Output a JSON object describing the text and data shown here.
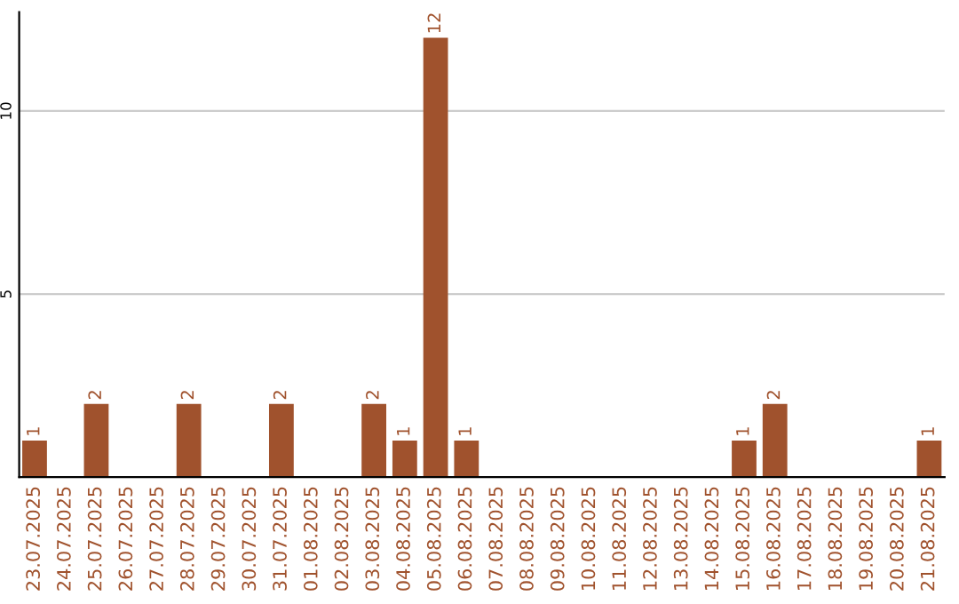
{
  "chart_data": {
    "type": "bar",
    "categories": [
      "23.07.2025",
      "24.07.2025",
      "25.07.2025",
      "26.07.2025",
      "27.07.2025",
      "28.07.2025",
      "29.07.2025",
      "30.07.2025",
      "31.07.2025",
      "01.08.2025",
      "02.08.2025",
      "03.08.2025",
      "04.08.2025",
      "05.08.2025",
      "06.08.2025",
      "07.08.2025",
      "08.08.2025",
      "09.08.2025",
      "10.08.2025",
      "11.08.2025",
      "12.08.2025",
      "13.08.2025",
      "14.08.2025",
      "15.08.2025",
      "16.08.2025",
      "17.08.2025",
      "18.08.2025",
      "19.08.2025",
      "20.08.2025",
      "21.08.2025"
    ],
    "values": [
      1,
      0,
      2,
      0,
      0,
      2,
      0,
      0,
      2,
      0,
      0,
      2,
      1,
      12,
      1,
      0,
      0,
      0,
      0,
      0,
      0,
      0,
      0,
      1,
      2,
      0,
      0,
      0,
      0,
      1
    ],
    "value_labels": [
      "1",
      null,
      "2",
      null,
      null,
      "2",
      null,
      null,
      "2",
      null,
      null,
      "2",
      "1",
      "12",
      "1",
      null,
      null,
      null,
      null,
      null,
      null,
      null,
      null,
      "1",
      "2",
      null,
      null,
      null,
      null,
      "1"
    ],
    "color": "#a0522d",
    "ylim": [
      0,
      12.7
    ],
    "yticks": [
      5,
      10
    ],
    "grid": "y"
  }
}
